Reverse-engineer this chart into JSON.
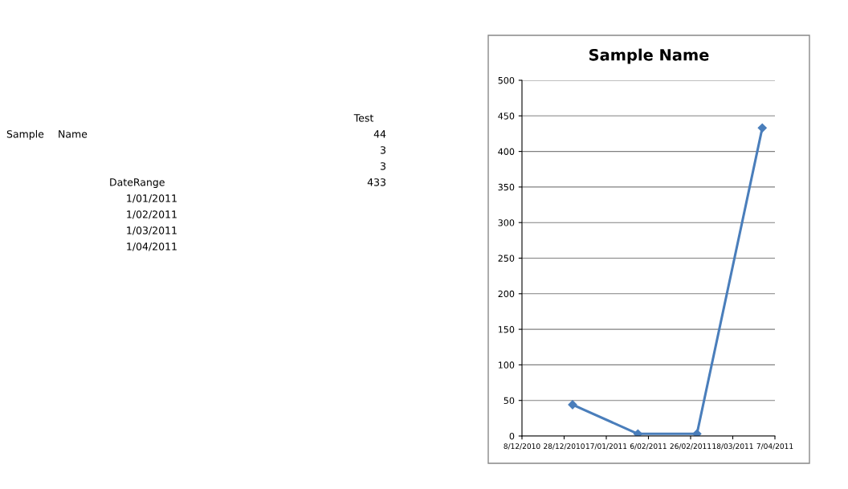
{
  "chart_data": {
    "type": "line",
    "title": "Sample Name",
    "x": [
      "2011-01-01",
      "2011-02-01",
      "2011-03-01",
      "2011-04-01"
    ],
    "series": [
      {
        "color": "#4a7ebb",
        "values": [
          44,
          3,
          3,
          433
        ]
      }
    ],
    "xlim": [
      "2010-12-08",
      "2011-04-07"
    ],
    "xticks": [
      {
        "value": "2010-12-08",
        "label": "8/12/2010"
      },
      {
        "value": "2010-12-28",
        "label": "28/12/2010"
      },
      {
        "value": "2011-01-17",
        "label": "17/01/2011"
      },
      {
        "value": "2011-02-06",
        "label": "6/02/2011"
      },
      {
        "value": "2011-02-26",
        "label": "26/02/2011"
      },
      {
        "value": "2011-03-18",
        "label": "18/03/2011"
      },
      {
        "value": "2011-04-07",
        "label": "7/04/2011"
      }
    ],
    "ylim": [
      0,
      500
    ],
    "yticks": [
      0,
      50,
      100,
      150,
      200,
      250,
      300,
      350,
      400,
      450,
      500
    ],
    "grid": "y",
    "legend": false,
    "marker": "diamond",
    "line_style": "solid",
    "annotations": [
      "Sample",
      "Name",
      "Test",
      "44",
      "3",
      "3",
      "433",
      "DateRange",
      "1/01/2011",
      "1/02/2011",
      "1/03/2011",
      "1/04/2011"
    ]
  }
}
